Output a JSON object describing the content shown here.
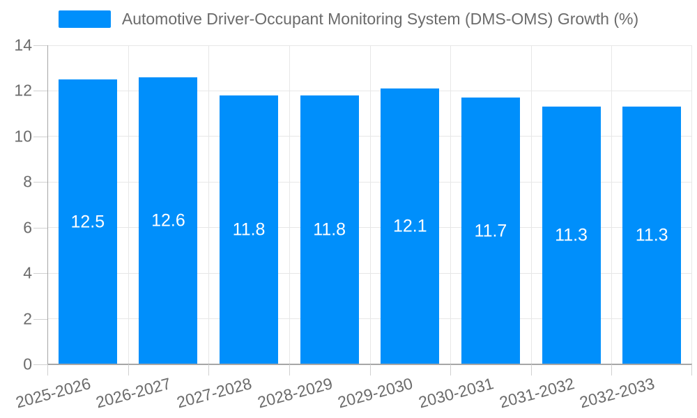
{
  "chart_data": {
    "type": "bar",
    "title": "Automotive Driver-Occupant Monitoring System (DMS-OMS) Growth (%)",
    "categories": [
      "2025-2026",
      "2026-2027",
      "2027-2028",
      "2028-2029",
      "2029-2030",
      "2030-2031",
      "2031-2032",
      "2032-2033"
    ],
    "values": [
      12.5,
      12.6,
      11.8,
      11.8,
      12.1,
      11.7,
      11.3,
      11.3
    ],
    "xlabel": "",
    "ylabel": "",
    "ylim": [
      0,
      14
    ],
    "yticks": [
      0,
      2,
      4,
      6,
      8,
      10,
      12,
      14
    ],
    "grid": "horizontal-and-vertical",
    "legend_position": "top-center",
    "data_labels": "inside-center",
    "colors": {
      "bar": "#008FFB",
      "grid": "#e7e7e7",
      "tick": "#d0d0d0",
      "axis_line": "#a6a6a6",
      "axis_text": "#6b6b6b",
      "legend_text": "#6b6b6b",
      "data_label_text": "#ffffff",
      "background": "#ffffff"
    }
  }
}
